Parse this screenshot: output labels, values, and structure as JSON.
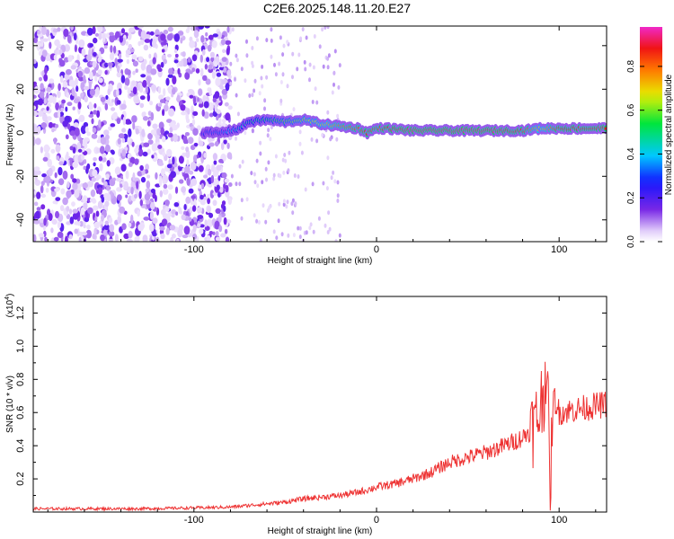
{
  "title": "C2E6.2025.148.11.20.E27",
  "chart_data": [
    {
      "type": "heatmap",
      "xlabel": "Height of straight line (km)",
      "ylabel": "Frequency (Hz)",
      "xlim": [
        -188,
        126
      ],
      "ylim": [
        -50,
        49
      ],
      "x_ticks": [
        -100,
        0,
        100
      ],
      "x_tick_labels": [
        "-100",
        "0",
        "100"
      ],
      "y_ticks": [
        -40,
        -20,
        0,
        20,
        40
      ],
      "y_tick_labels": [
        "-40",
        "-20",
        "0",
        "20",
        "40"
      ],
      "colorbar": {
        "label": "Normalized spectral amplitude",
        "range": [
          0,
          0.98
        ],
        "ticks": [
          0.0,
          0.2,
          0.4,
          0.6,
          0.8
        ],
        "tick_labels": [
          "0.0",
          "0.2",
          "0.4",
          "0.6",
          "0.8"
        ]
      },
      "ridge": {
        "x": [
          -95,
          -85,
          -75,
          -70,
          -60,
          -50,
          -40,
          -30,
          -20,
          -10,
          -5,
          0,
          5,
          20,
          40,
          60,
          80,
          90,
          100,
          126
        ],
        "frequency": [
          0,
          0,
          2,
          5,
          6,
          5,
          6,
          4,
          3,
          2,
          0,
          2,
          2,
          1,
          1,
          1,
          1,
          2,
          2,
          2
        ],
        "amplitude": [
          0.3,
          0.35,
          0.45,
          0.5,
          0.55,
          0.6,
          0.65,
          0.7,
          0.8,
          0.85,
          0.9,
          0.85,
          0.9,
          0.95,
          0.95,
          0.95,
          0.9,
          0.7,
          0.9,
          0.92
        ]
      },
      "noise_region_x": [
        -188,
        -80
      ],
      "grid": false
    },
    {
      "type": "line",
      "xlabel": "Height of straight line (km)",
      "ylabel": "SNR (10 * v/v)",
      "scale_note": "(x10",
      "scale_exponent": "4",
      "xlim": [
        -188,
        126
      ],
      "ylim": [
        0,
        1.3
      ],
      "x_ticks": [
        -100,
        0,
        100
      ],
      "x_tick_labels": [
        "-100",
        "0",
        "100"
      ],
      "y_ticks": [
        0.2,
        0.4,
        0.6,
        0.8,
        1.0,
        1.2
      ],
      "y_tick_labels": [
        "0.2",
        "0.4",
        "0.6",
        "0.8",
        "1.0",
        "1.2"
      ],
      "series": [
        {
          "color": "#ee3333",
          "x": [
            -188,
            -160,
            -130,
            -100,
            -80,
            -70,
            -60,
            -50,
            -40,
            -30,
            -20,
            -10,
            0,
            10,
            20,
            30,
            40,
            50,
            60,
            70,
            80,
            85,
            88,
            90,
            92,
            93,
            94,
            95,
            97,
            100,
            110,
            120,
            126
          ],
          "y": [
            0.02,
            0.02,
            0.02,
            0.025,
            0.03,
            0.04,
            0.05,
            0.06,
            0.08,
            0.09,
            0.1,
            0.12,
            0.15,
            0.17,
            0.2,
            0.24,
            0.3,
            0.33,
            0.36,
            0.4,
            0.45,
            0.5,
            0.55,
            0.65,
            0.75,
            0.95,
            0.6,
            0.08,
            0.7,
            0.6,
            0.62,
            0.64,
            0.65
          ]
        }
      ],
      "grid": false
    }
  ]
}
